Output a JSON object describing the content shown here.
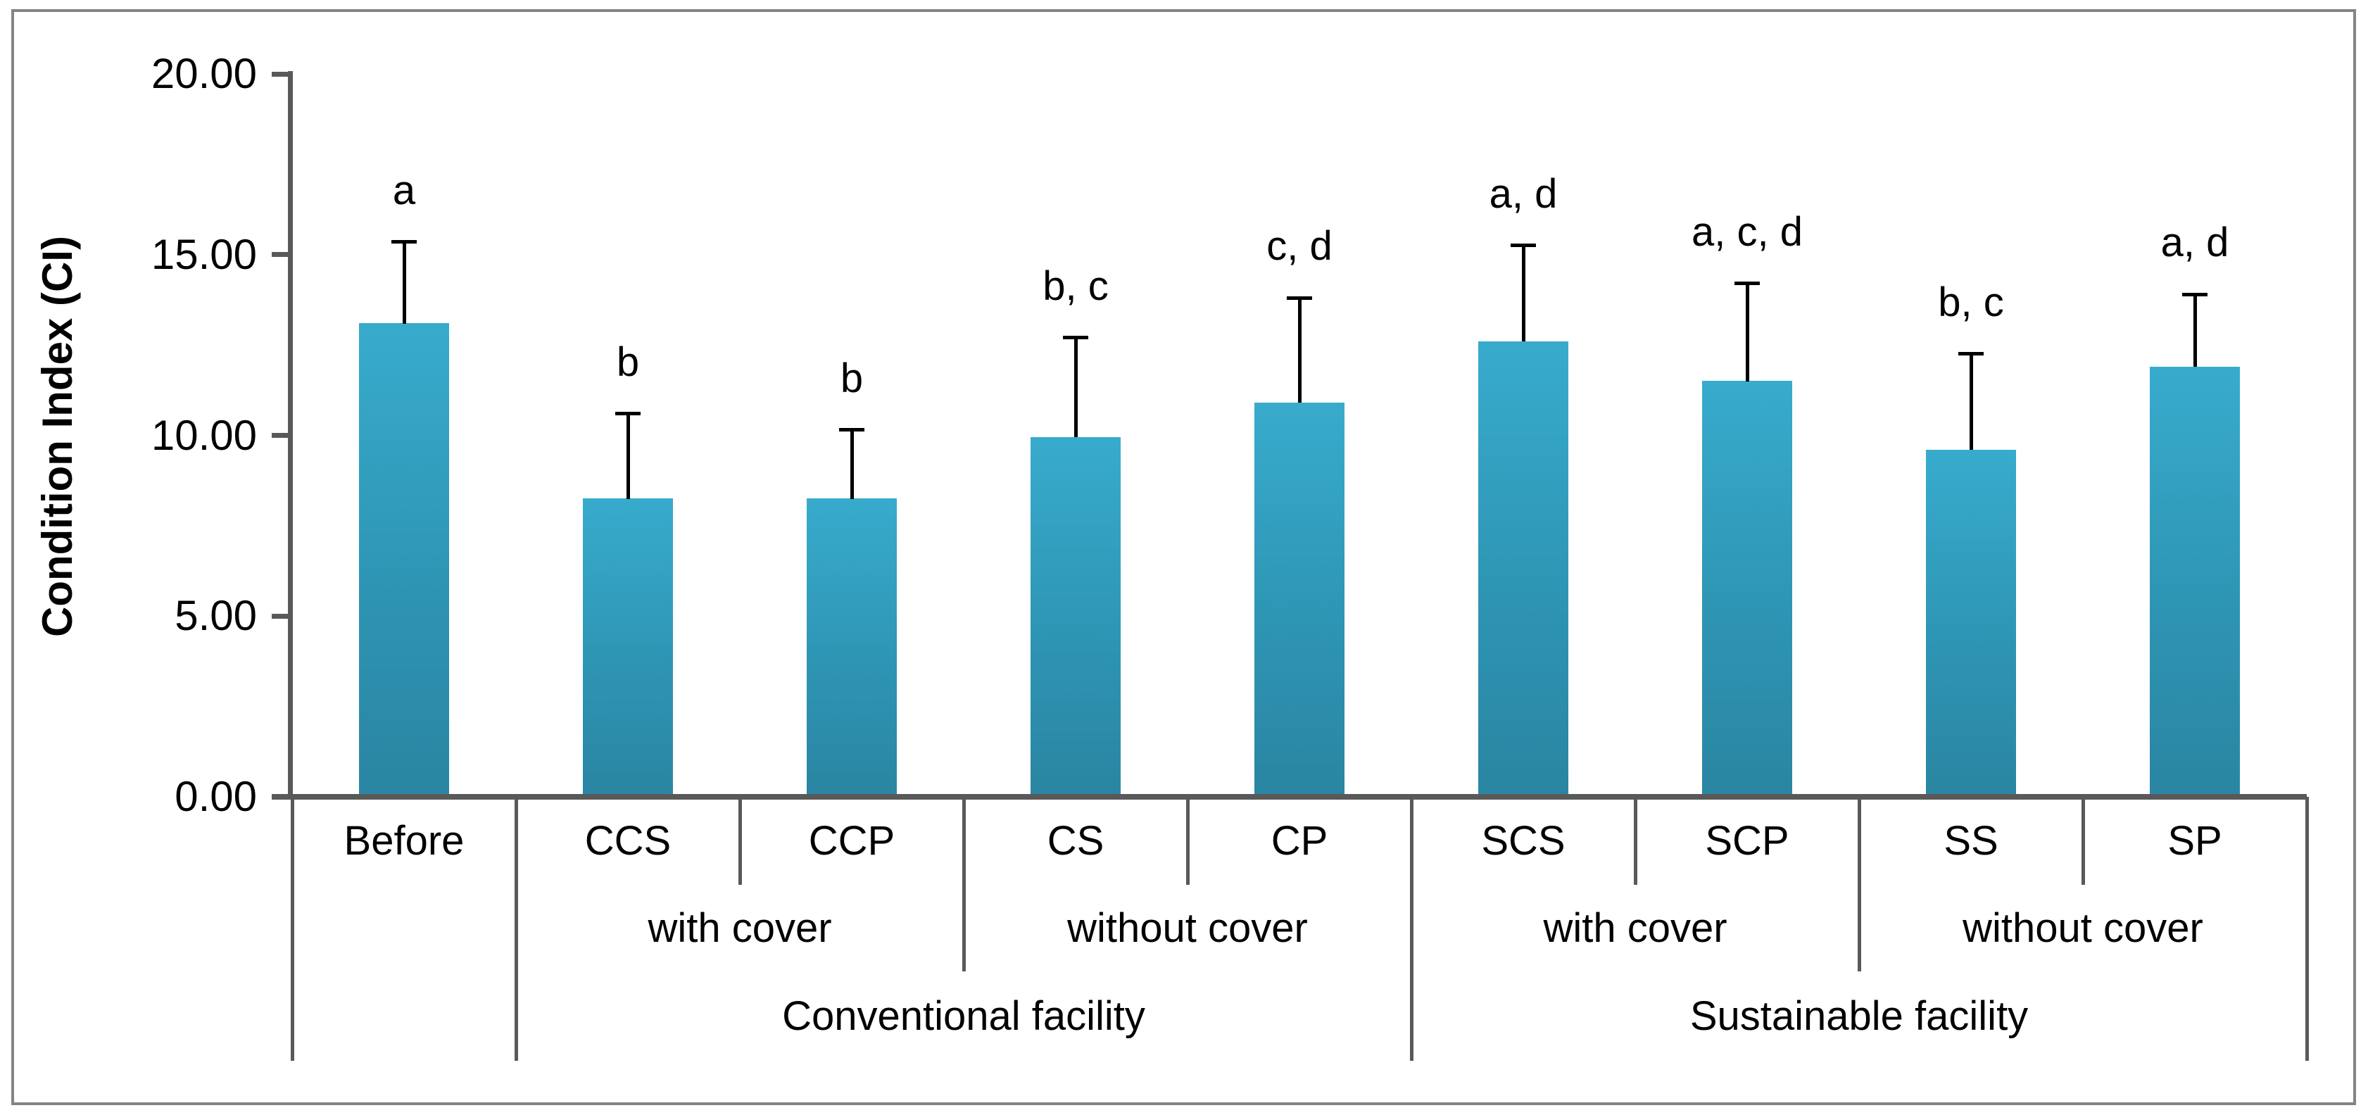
{
  "figure": {
    "background": "#ffffff",
    "border_color": "#848484"
  },
  "chart_data": {
    "type": "bar",
    "title": "",
    "xlabel": "",
    "ylabel": "Condition Index (CI)",
    "ylim": [
      0,
      20
    ],
    "yticks": [
      0,
      5,
      10,
      15,
      20
    ],
    "ytick_labels": [
      "0.00",
      "5.00",
      "10.00",
      "15.00",
      "20.00"
    ],
    "grid": false,
    "legend_position": "none",
    "bar_color_top": "#38abcd",
    "bar_color_bottom": "#2a85a2",
    "axis_color": "#595959",
    "error_bar_color": "#000000",
    "categories": [
      "Before",
      "CCS",
      "CCP",
      "CS",
      "CP",
      "SCS",
      "SCP",
      "SS",
      "SP"
    ],
    "values": [
      13.1,
      8.25,
      8.25,
      9.95,
      10.9,
      12.6,
      11.5,
      9.6,
      11.9
    ],
    "error_upper": [
      2.25,
      2.35,
      1.9,
      2.75,
      2.9,
      2.65,
      2.7,
      2.65,
      2.0
    ],
    "significance_labels": [
      "a",
      "b",
      "b",
      "b, c",
      "c, d",
      "a, d",
      "a, c, d",
      "b, c",
      "a, d"
    ],
    "group_level2": [
      {
        "label": "with cover",
        "span": [
          1,
          3
        ]
      },
      {
        "label": "without cover",
        "span": [
          3,
          5
        ]
      },
      {
        "label": "with cover",
        "span": [
          5,
          7
        ]
      },
      {
        "label": "without cover",
        "span": [
          7,
          9
        ]
      }
    ],
    "group_level3": [
      {
        "label": "Conventional facility",
        "span": [
          1,
          5
        ]
      },
      {
        "label": "Sustainable facility",
        "span": [
          5,
          9
        ]
      }
    ]
  }
}
